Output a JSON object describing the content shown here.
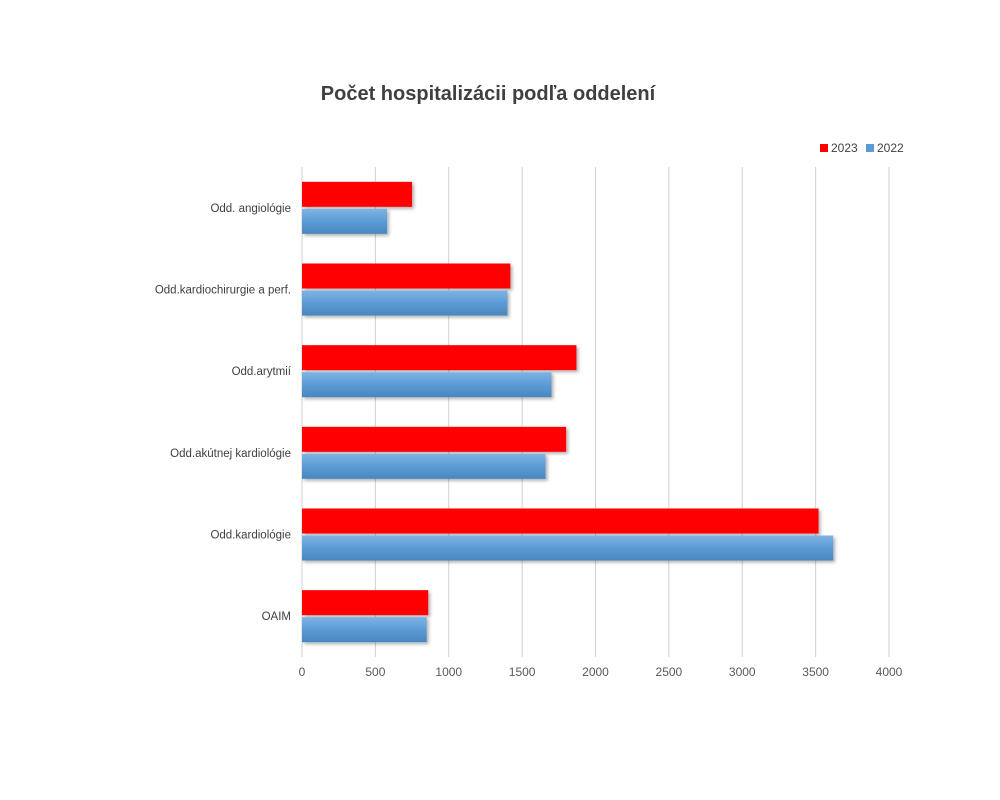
{
  "chart_data": {
    "type": "bar",
    "orientation": "horizontal",
    "title": "Počet hospitalizácii podľa oddelení",
    "xlabel": "",
    "ylabel": "",
    "xlim": [
      0,
      4000
    ],
    "x_ticks": [
      0,
      500,
      1000,
      1500,
      2000,
      2500,
      3000,
      3500,
      4000
    ],
    "grid": true,
    "legend_position": "top-right",
    "categories": [
      "Odd. angiológie",
      "Odd.kardiochirurgie a perf.",
      "Odd.arytmií",
      "Odd.akútnej kardiológie",
      "Odd.kardiológie",
      "OAIM"
    ],
    "series": [
      {
        "name": "2023",
        "color": "#ff0000",
        "values": [
          750,
          1420,
          1870,
          1800,
          3520,
          860
        ]
      },
      {
        "name": "2022",
        "color": "#5b9bd5",
        "values": [
          580,
          1400,
          1700,
          1660,
          3620,
          850
        ]
      }
    ]
  }
}
